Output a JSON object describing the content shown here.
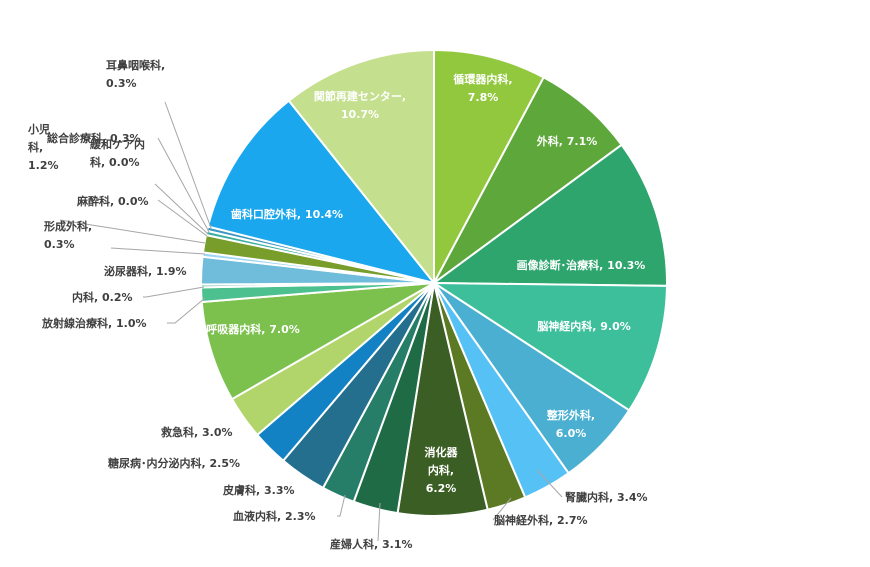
{
  "chart_data": {
    "type": "pie",
    "title": "",
    "slices": [
      {
        "name": "循環器内科",
        "value": 7.8,
        "label": [
          "循環器内科,",
          "7.8%"
        ],
        "color": "#92c83e"
      },
      {
        "name": "外科",
        "value": 7.1,
        "label": [
          "外科, 7.1%"
        ],
        "color": "#5ea73b"
      },
      {
        "name": "画像診断・治療科",
        "value": 10.3,
        "label": [
          "画像診断･治療科, 10.3%"
        ],
        "color": "#2fa56e"
      },
      {
        "name": "脳神経内科",
        "value": 9.0,
        "label": [
          "脳神経内科, 9.0%"
        ],
        "color": "#3dbf9c"
      },
      {
        "name": "整形外科",
        "value": 6.0,
        "label": [
          "整形外科,",
          "6.0%"
        ],
        "color": "#4aafd1"
      },
      {
        "name": "腎臓内科",
        "value": 3.4,
        "label": [
          "腎臓内科, 3.4%"
        ],
        "color": "#56c1f5"
      },
      {
        "name": "脳神経外科",
        "value": 2.7,
        "label": [
          "脳神経外科, 2.7%"
        ],
        "color": "#5b7a23"
      },
      {
        "name": "消化器内科",
        "value": 6.2,
        "label": [
          "消化器",
          "内科,",
          "6.2%"
        ],
        "color": "#3b5e24"
      },
      {
        "name": "産婦人科",
        "value": 3.1,
        "label": [
          "産婦人科, 3.1%"
        ],
        "color": "#1e6b45"
      },
      {
        "name": "血液内科",
        "value": 2.3,
        "label": [
          "血液内科, 2.3%"
        ],
        "color": "#267e69"
      },
      {
        "name": "皮膚科",
        "value": 3.3,
        "label": [
          "皮膚科, 3.3%"
        ],
        "color": "#256f8e"
      },
      {
        "name": "糖尿病・内分泌内科",
        "value": 2.5,
        "label": [
          "糖尿病･内分泌内科, 2.5%"
        ],
        "color": "#1382c5"
      },
      {
        "name": "救急科",
        "value": 3.0,
        "label": [
          "救急科, 3.0%"
        ],
        "color": "#b1d56a"
      },
      {
        "name": "呼吸器内科",
        "value": 7.0,
        "label": [
          "呼吸器内科, 7.0%"
        ],
        "color": "#7cc04e"
      },
      {
        "name": "放射線治療科",
        "value": 1.0,
        "label": [
          "放射線治療科, 1.0%"
        ],
        "color": "#4cc08f"
      },
      {
        "name": "内科",
        "value": 0.2,
        "label": [
          "内科, 0.2%"
        ],
        "color": "#79c3b2"
      },
      {
        "name": "泌尿器科",
        "value": 1.9,
        "label": [
          "泌尿器科, 1.9%"
        ],
        "color": "#6fbddb"
      },
      {
        "name": "形成外科",
        "value": 0.3,
        "label": [
          "形成外科,",
          "0.3%"
        ],
        "color": "#9fd6f3"
      },
      {
        "name": "小児科",
        "value": 1.2,
        "label": [
          "小児",
          "科,",
          "1.2%"
        ],
        "color": "#789d2b"
      },
      {
        "name": "麻酔科",
        "value": 0.0,
        "label": [
          "麻酔科, 0.0%"
        ],
        "color": "#4e7c2e"
      },
      {
        "name": "緩和ケア内科",
        "value": 0.0,
        "label": [
          "緩和ケア内",
          "科, 0.0%"
        ],
        "color": "#2d8a5e"
      },
      {
        "name": "総合診療科",
        "value": 0.3,
        "label": [
          "総合診療科, 0.3%"
        ],
        "color": "#3aaea0"
      },
      {
        "name": "耳鼻咽喉科",
        "value": 0.3,
        "label": [
          "耳鼻咽喉科,",
          "0.3%"
        ],
        "color": "#3b96c1"
      },
      {
        "name": "歯科口腔外科",
        "value": 10.4,
        "label": [
          "歯科口腔外科, 10.4%"
        ],
        "color": "#1aa7ee"
      },
      {
        "name": "関節再建センター",
        "value": 10.7,
        "label": [
          "関節再建センター,",
          "10.7%"
        ],
        "color": "#c4df8d"
      }
    ]
  }
}
